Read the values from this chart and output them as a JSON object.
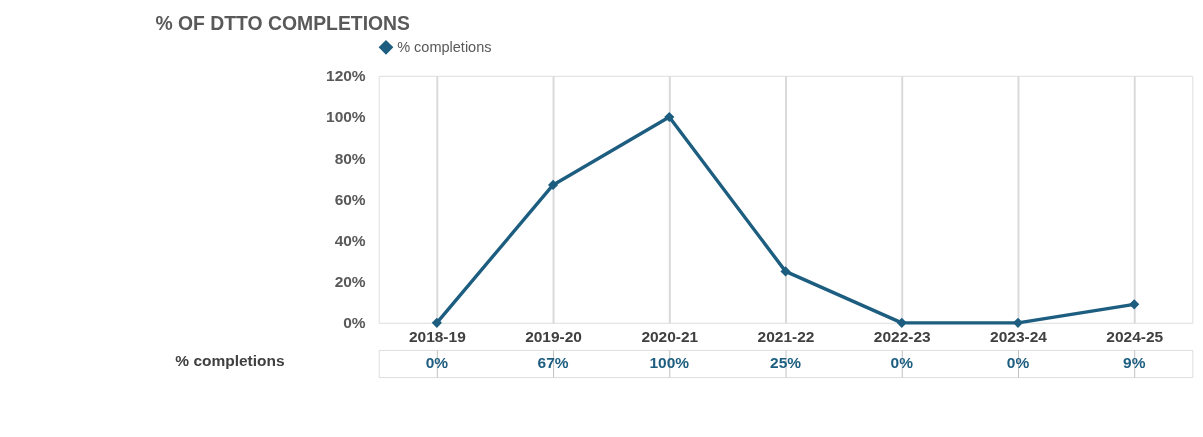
{
  "chart_data": {
    "type": "line",
    "title": "% OF DTTO COMPLETIONS",
    "categories": [
      "2018-19",
      "2019-20",
      "2020-21",
      "2021-22",
      "2022-23",
      "2023-24",
      "2024-25"
    ],
    "series": [
      {
        "name": "% completions",
        "color": "#1d5e80",
        "values": [
          0,
          67,
          100,
          25,
          0,
          0,
          9
        ],
        "value_labels": [
          "0%",
          "67%",
          "100%",
          "25%",
          "0%",
          "0%",
          "9%"
        ]
      }
    ],
    "ylim": [
      0,
      120
    ],
    "yticks": [
      {
        "value": 0,
        "label": "0%"
      },
      {
        "value": 20,
        "label": "20%"
      },
      {
        "value": 40,
        "label": "40%"
      },
      {
        "value": 60,
        "label": "60%"
      },
      {
        "value": 80,
        "label": "80%"
      },
      {
        "value": 100,
        "label": "100%"
      },
      {
        "value": 120,
        "label": "120%"
      }
    ],
    "grid": "x",
    "legend": "top",
    "marker": "diamond",
    "line_style": "solid"
  }
}
